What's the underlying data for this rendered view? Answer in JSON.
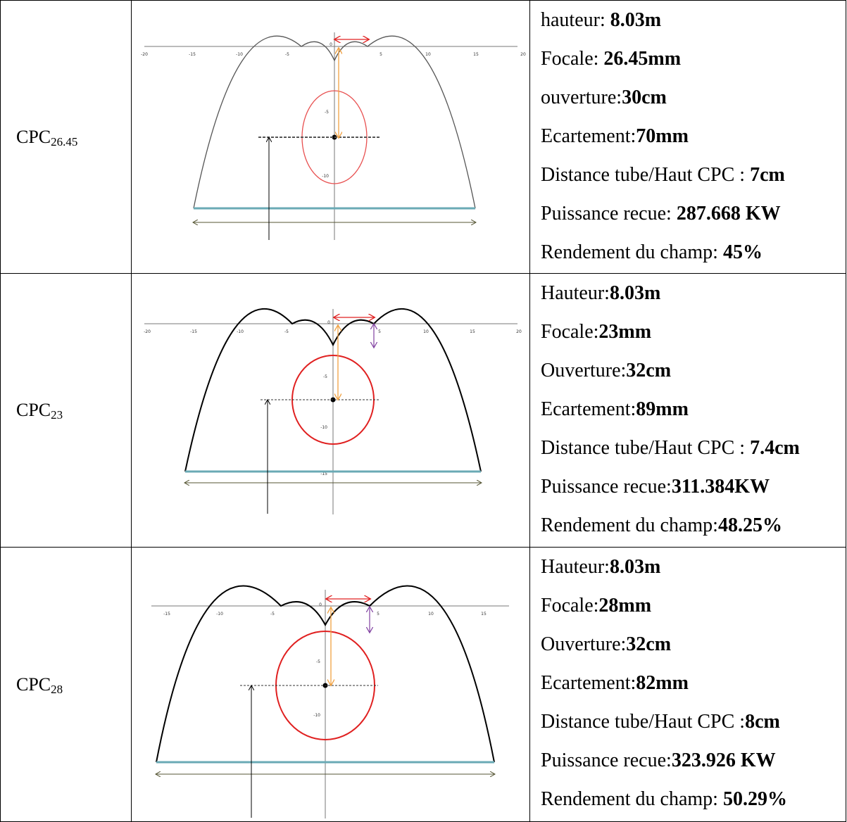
{
  "rows": [
    {
      "cpc_base": "CPC",
      "cpc_sub": "26.45",
      "items": [
        {
          "label": "hauteur: ",
          "value": "8.03m"
        },
        {
          "label": "Focale: ",
          "value": "26.45mm"
        },
        {
          "label": "ouverture:",
          "value": "30cm"
        },
        {
          "label": "Ecartement:",
          "value": "70mm"
        },
        {
          "label": "Distance tube/Haut CPC : ",
          "value": "7cm"
        },
        {
          "label": "Puissance recue:  ",
          "value": "287.668 KW"
        },
        {
          "label": "Rendement du champ: ",
          "value": "45%"
        }
      ],
      "figure": {
        "x_ticks": [
          "-20",
          "-15",
          "-10",
          "-5",
          "0",
          "5",
          "10",
          "15",
          "20"
        ],
        "y_ticks": [
          "-5",
          "-10"
        ],
        "colors": {
          "curve": "#555555",
          "receiver": "#e85050",
          "aperture": "#6aaab5",
          "focal": "#f0a040",
          "gap": "#e02020",
          "span": "#555533"
        }
      }
    },
    {
      "cpc_base": "CPC",
      "cpc_sub": "23",
      "items": [
        {
          "label": "Hauteur:",
          "value": "8.03m"
        },
        {
          "label": "Focale:",
          "value": "23mm"
        },
        {
          "label": "Ouverture:",
          "value": "32cm"
        },
        {
          "label": "Ecartement:",
          "value": "89mm"
        },
        {
          "label": "Distance tube/Haut CPC : ",
          "value": "7.4cm"
        },
        {
          "label": "Puissance recue:",
          "value": "311.384KW"
        },
        {
          "label": "Rendement du champ:",
          "value": "48.25%"
        }
      ],
      "figure": {
        "x_ticks": [
          "-20",
          "-15",
          "-10",
          "-5",
          "0",
          "5",
          "10",
          "15",
          "20"
        ],
        "y_ticks": [
          "-5",
          "-10",
          "-15"
        ],
        "colors": {
          "curve": "#000000",
          "receiver": "#e02020",
          "aperture": "#6aaab5",
          "focal": "#f0a040",
          "gap": "#e02020",
          "span": "#555533",
          "depth": "#8040a0"
        }
      }
    },
    {
      "cpc_base": "CPC",
      "cpc_sub": "28",
      "items": [
        {
          "label": "Hauteur:",
          "value": "8.03m"
        },
        {
          "label": "Focale:",
          "value": "28mm"
        },
        {
          "label": "Ouverture:",
          "value": "32cm"
        },
        {
          "label": "Ecartement:",
          "value": "82mm"
        },
        {
          "label": "Distance tube/Haut CPC :",
          "value": "8cm"
        },
        {
          "label": "Puissance recue:",
          "value": "323.926 KW"
        },
        {
          "label": "Rendement du champ: ",
          "value": "50.29%"
        }
      ],
      "figure": {
        "x_ticks": [
          "-15",
          "-10",
          "-5",
          "0",
          "5",
          "10",
          "15"
        ],
        "y_ticks": [
          "-5",
          "-10"
        ],
        "colors": {
          "curve": "#000000",
          "receiver": "#e02020",
          "aperture": "#6aaab5",
          "focal": "#f0a040",
          "gap": "#e02020",
          "span": "#555533",
          "depth": "#8040a0"
        }
      }
    }
  ]
}
